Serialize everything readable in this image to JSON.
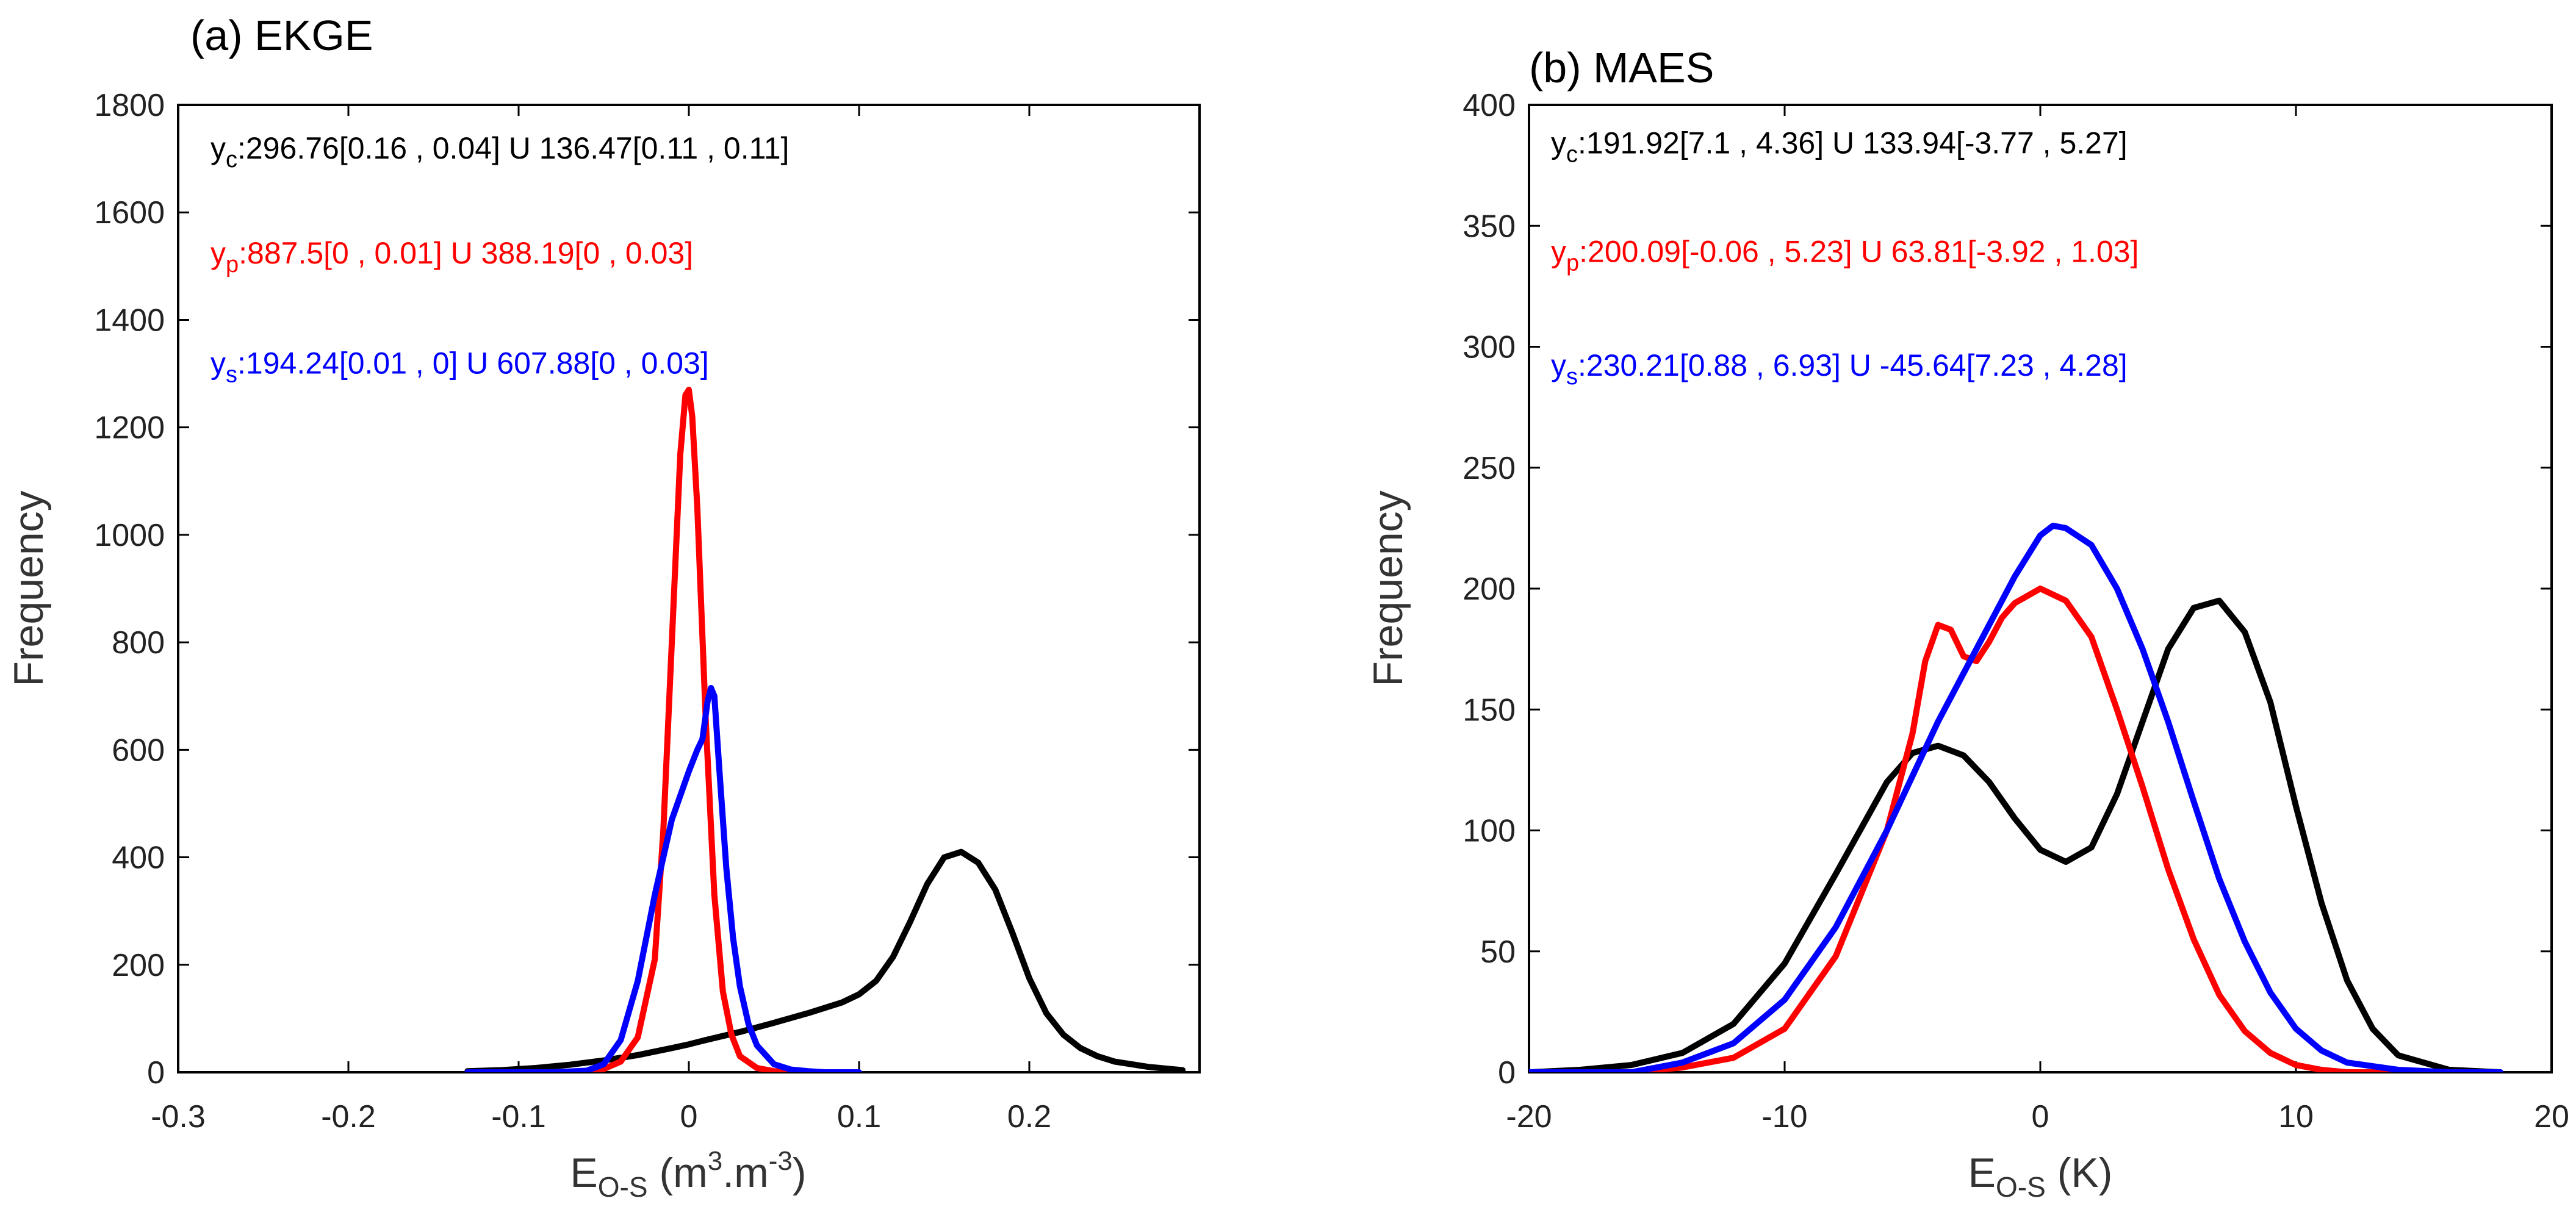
{
  "chart_data": [
    {
      "type": "line",
      "panel": "a",
      "title": "(a)  EKGE",
      "ylabel": "Frequency",
      "xlabel": {
        "base": "E",
        "sub": "O-S",
        "unit_parts": [
          " (m",
          "3",
          ".m",
          "-3",
          ")"
        ]
      },
      "xlim": [
        -0.3,
        0.3
      ],
      "ylim": [
        0,
        1800
      ],
      "xticks": [
        {
          "value": -0.3,
          "label": "-0.3"
        },
        {
          "value": -0.2,
          "label": "-0.2"
        },
        {
          "value": -0.1,
          "label": "-0.1"
        },
        {
          "value": 0,
          "label": "0"
        },
        {
          "value": 0.1,
          "label": "0.1"
        },
        {
          "value": 0.2,
          "label": "0.2"
        }
      ],
      "yticks": [
        {
          "value": 0,
          "label": "0"
        },
        {
          "value": 200,
          "label": "200"
        },
        {
          "value": 400,
          "label": "400"
        },
        {
          "value": 600,
          "label": "600"
        },
        {
          "value": 800,
          "label": "800"
        },
        {
          "value": 1000,
          "label": "1000"
        },
        {
          "value": 1200,
          "label": "1200"
        },
        {
          "value": 1400,
          "label": "1400"
        },
        {
          "value": 1600,
          "label": "1600"
        },
        {
          "value": 1800,
          "label": "1800"
        }
      ],
      "annotations": [
        {
          "base": "y",
          "sub": "c",
          "text": ":296.76[0.16 , 0.04] U 136.47[0.11 , 0.11]",
          "color": "#000000",
          "y_value": 1700
        },
        {
          "base": "y",
          "sub": "p",
          "text": ":887.5[0 , 0.01] U 388.19[0 , 0.03]",
          "color": "#ff0000",
          "y_value": 1505
        },
        {
          "base": "y",
          "sub": "s",
          "text": ":194.24[0.01 , 0] U 607.88[0 , 0.03]",
          "color": "#0000ff",
          "y_value": 1300
        }
      ],
      "series": [
        {
          "name": "y_c",
          "color": "#000000",
          "x": [
            -0.13,
            -0.11,
            -0.09,
            -0.07,
            -0.05,
            -0.03,
            -0.01,
            0.0,
            0.01,
            0.03,
            0.05,
            0.07,
            0.09,
            0.1,
            0.11,
            0.12,
            0.13,
            0.14,
            0.15,
            0.16,
            0.17,
            0.18,
            0.19,
            0.2,
            0.21,
            0.22,
            0.23,
            0.24,
            0.25,
            0.27,
            0.29
          ],
          "y": [
            2,
            4,
            8,
            14,
            22,
            32,
            45,
            52,
            60,
            75,
            92,
            110,
            130,
            145,
            170,
            215,
            280,
            350,
            400,
            410,
            390,
            340,
            260,
            175,
            110,
            70,
            45,
            30,
            20,
            10,
            4
          ]
        },
        {
          "name": "y_p",
          "color": "#ff0000",
          "x": [
            -0.13,
            -0.08,
            -0.06,
            -0.05,
            -0.04,
            -0.03,
            -0.02,
            -0.015,
            -0.01,
            -0.005,
            -0.002,
            0.0,
            0.002,
            0.005,
            0.01,
            0.015,
            0.02,
            0.025,
            0.03,
            0.04,
            0.05,
            0.06,
            0.08
          ],
          "y": [
            0,
            0,
            2,
            6,
            20,
            65,
            210,
            450,
            800,
            1150,
            1260,
            1270,
            1220,
            1050,
            650,
            330,
            150,
            70,
            30,
            8,
            2,
            0,
            0
          ]
        },
        {
          "name": "y_s",
          "color": "#0000ff",
          "x": [
            -0.13,
            -0.08,
            -0.06,
            -0.05,
            -0.04,
            -0.03,
            -0.02,
            -0.01,
            0.0,
            0.005,
            0.008,
            0.011,
            0.013,
            0.015,
            0.018,
            0.022,
            0.026,
            0.03,
            0.035,
            0.04,
            0.05,
            0.06,
            0.07,
            0.08,
            0.1
          ],
          "y": [
            0,
            0,
            3,
            15,
            60,
            170,
            330,
            470,
            560,
            600,
            620,
            690,
            715,
            700,
            560,
            380,
            250,
            160,
            90,
            50,
            15,
            5,
            2,
            0,
            0
          ]
        }
      ]
    },
    {
      "type": "line",
      "panel": "b",
      "title": "(b)  MAES",
      "ylabel": "Frequency",
      "xlabel": {
        "base": "E",
        "sub": "O-S",
        "unit_parts": [
          "  (K)"
        ]
      },
      "xlim": [
        -20,
        20
      ],
      "ylim": [
        0,
        400
      ],
      "xticks": [
        {
          "value": -20,
          "label": "-20"
        },
        {
          "value": -10,
          "label": "-10"
        },
        {
          "value": 0,
          "label": "0"
        },
        {
          "value": 10,
          "label": "10"
        },
        {
          "value": 20,
          "label": "20"
        }
      ],
      "yticks": [
        {
          "value": 0,
          "label": "0"
        },
        {
          "value": 50,
          "label": "50"
        },
        {
          "value": 100,
          "label": "100"
        },
        {
          "value": 150,
          "label": "150"
        },
        {
          "value": 200,
          "label": "200"
        },
        {
          "value": 250,
          "label": "250"
        },
        {
          "value": 300,
          "label": "300"
        },
        {
          "value": 350,
          "label": "350"
        },
        {
          "value": 400,
          "label": "400"
        }
      ],
      "annotations": [
        {
          "base": "y",
          "sub": "c",
          "text": ":191.92[7.1 , 4.36] U 133.94[-3.77 , 5.27]",
          "color": "#000000",
          "y_value": 380
        },
        {
          "base": "y",
          "sub": "p",
          "text": ":200.09[-0.06 , 5.23] U 63.81[-3.92 , 1.03]",
          "color": "#ff0000",
          "y_value": 335
        },
        {
          "base": "y",
          "sub": "s",
          "text": ":230.21[0.88 , 6.93] U -45.64[7.23 , 4.28]",
          "color": "#0000ff",
          "y_value": 288
        }
      ],
      "series": [
        {
          "name": "y_c",
          "color": "#000000",
          "x": [
            -20,
            -18,
            -16,
            -14,
            -12,
            -10,
            -8,
            -6,
            -5,
            -4,
            -3,
            -2,
            -1,
            0,
            1,
            2,
            3,
            4,
            5,
            6,
            7,
            8,
            9,
            10,
            11,
            12,
            13,
            14,
            16,
            18
          ],
          "y": [
            0,
            1,
            3,
            8,
            20,
            45,
            82,
            120,
            132,
            135,
            131,
            120,
            105,
            92,
            87,
            93,
            115,
            145,
            175,
            192,
            195,
            182,
            153,
            110,
            70,
            38,
            18,
            7,
            1,
            0
          ]
        },
        {
          "name": "y_p",
          "color": "#ff0000",
          "x": [
            -20,
            -16,
            -14,
            -12,
            -10,
            -8,
            -6,
            -5,
            -4.5,
            -4,
            -3.5,
            -3,
            -2.5,
            -2,
            -1.5,
            -1,
            0,
            1,
            2,
            3,
            4,
            5,
            6,
            7,
            8,
            9,
            10,
            11,
            12,
            14,
            16
          ],
          "y": [
            0,
            0,
            2,
            6,
            18,
            48,
            100,
            140,
            170,
            185,
            183,
            172,
            170,
            178,
            188,
            194,
            200,
            195,
            180,
            150,
            118,
            84,
            55,
            32,
            17,
            8,
            3,
            1,
            0,
            0,
            0
          ]
        },
        {
          "name": "y_s",
          "color": "#0000ff",
          "x": [
            -20,
            -16,
            -14,
            -12,
            -10,
            -8,
            -6,
            -4,
            -2,
            -1,
            0,
            0.5,
            1,
            2,
            3,
            4,
            5,
            6,
            7,
            8,
            9,
            10,
            11,
            12,
            14,
            16,
            18
          ],
          "y": [
            0,
            0,
            4,
            12,
            30,
            60,
            100,
            145,
            185,
            205,
            222,
            226,
            225,
            218,
            200,
            175,
            145,
            112,
            80,
            54,
            33,
            18,
            9,
            4,
            1,
            0,
            0
          ]
        }
      ]
    }
  ]
}
